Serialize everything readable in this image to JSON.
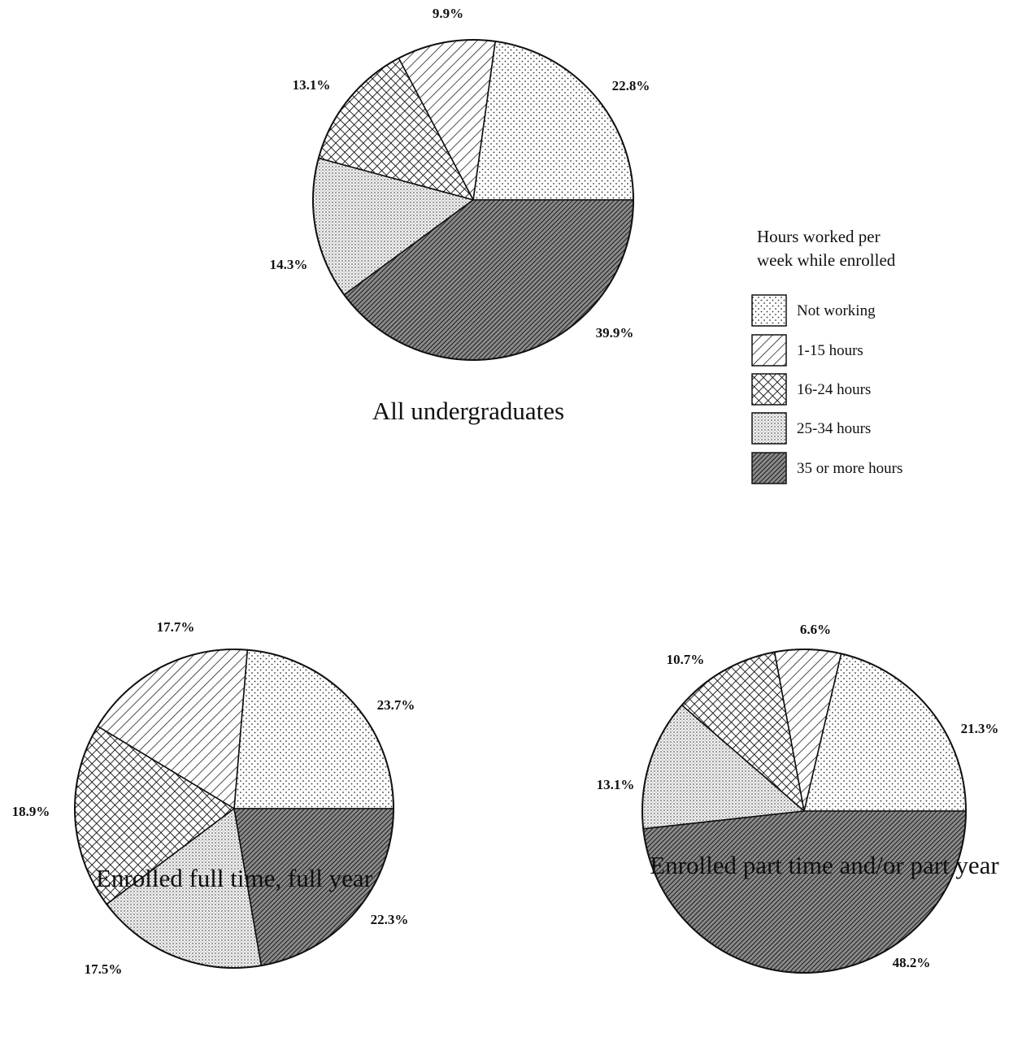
{
  "legend": {
    "title_line1": "Hours worked per",
    "title_line2": "week while enrolled",
    "items": [
      {
        "label": "Not working",
        "pattern": "dots-fine"
      },
      {
        "label": "1-15 hours",
        "pattern": "diagonal-hatch"
      },
      {
        "label": "16-24 hours",
        "pattern": "crosshatch"
      },
      {
        "label": "25-34 hours",
        "pattern": "dots-dense"
      },
      {
        "label": "35 or more hours",
        "pattern": "dense-diagonal-dark"
      }
    ]
  },
  "chart_data": [
    {
      "type": "pie",
      "title": "All undergraduates",
      "categories": [
        "Not working",
        "1-15 hours",
        "16-24 hours",
        "25-34 hours",
        "35 or more hours"
      ],
      "values": [
        22.8,
        9.9,
        13.1,
        14.3,
        39.9
      ],
      "value_labels": [
        "22.8%",
        "9.9%",
        "13.1%",
        "14.3%",
        "39.9%"
      ]
    },
    {
      "type": "pie",
      "title": "Enrolled full time, full year",
      "categories": [
        "Not working",
        "1-15 hours",
        "16-24 hours",
        "25-34 hours",
        "35 or more hours"
      ],
      "values": [
        23.7,
        17.7,
        18.9,
        17.5,
        22.3
      ],
      "value_labels": [
        "23.7%",
        "17.7%",
        "18.9%",
        "17.5%",
        "22.3%"
      ]
    },
    {
      "type": "pie",
      "title": "Enrolled part time and/or part year",
      "categories": [
        "Not working",
        "1-15 hours",
        "16-24 hours",
        "25-34 hours",
        "35 or more hours"
      ],
      "values": [
        21.3,
        6.6,
        10.7,
        13.1,
        48.2
      ],
      "value_labels": [
        "21.3%",
        "6.6%",
        "10.7%",
        "13.1%",
        "48.2%"
      ]
    }
  ]
}
